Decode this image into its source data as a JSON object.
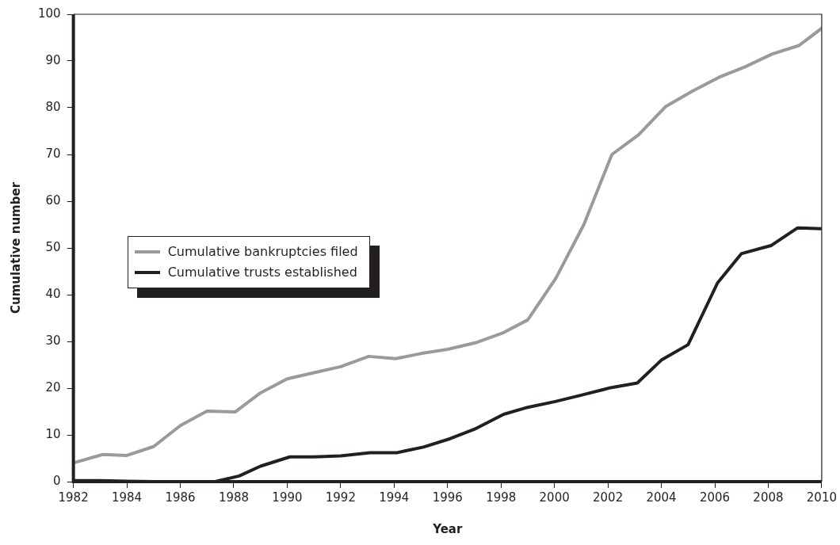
{
  "chart_data": {
    "type": "line",
    "xlabel": "Year",
    "ylabel": "Cumulative number",
    "xlim": [
      1982,
      2010
    ],
    "xticks": [
      1982,
      1984,
      1986,
      1988,
      1990,
      1992,
      1994,
      1996,
      1998,
      2000,
      2002,
      2004,
      2006,
      2008,
      2010
    ],
    "ylim": [
      0,
      100
    ],
    "yticks": [
      0,
      10,
      20,
      30,
      40,
      50,
      60,
      70,
      80,
      90,
      100
    ],
    "grid": false,
    "legend": "left",
    "marker": "none",
    "line_style": "solid",
    "series": [
      {
        "name": "Cumulative bankruptcies filed",
        "color": "#999a9c",
        "x": [
          1982,
          1983.1,
          1984,
          1985,
          1986,
          1987,
          1988.05,
          1989,
          1990,
          1991,
          1992,
          1993.05,
          1994.05,
          1995,
          1996,
          1997.1,
          1998.1,
          1999,
          2000.05,
          2001.1,
          2002.15,
          2003.15,
          2004.15,
          2005.15,
          2006.15,
          2007.15,
          2008.15,
          2009.15,
          2010
        ],
        "values": [
          4,
          5.8,
          5.6,
          7.5,
          12,
          15.1,
          14.9,
          19,
          22,
          23.3,
          24.6,
          26.8,
          26.3,
          27.4,
          28.3,
          29.8,
          31.9,
          34.6,
          43.5,
          55,
          70,
          74.2,
          80.2,
          83.5,
          86.5,
          88.8,
          91.5,
          93.3,
          97
        ]
      },
      {
        "name": "Cumulative trusts established",
        "color": "#231f20",
        "x": [
          1982,
          1983,
          1984,
          1985,
          1986,
          1987.3,
          1988.2,
          1989,
          1990.1,
          1991,
          1992,
          1993.1,
          1994.1,
          1995.1,
          1996.1,
          1997,
          1998.1,
          1999,
          2000,
          2001,
          2002.1,
          2003.1,
          2004,
          2005,
          2006.1,
          2007,
          2008.1,
          2009.1,
          2010
        ],
        "values": [
          0.2,
          0.2,
          0.1,
          0,
          0,
          0,
          1.2,
          3.3,
          5.3,
          5.3,
          5.5,
          6.2,
          6.2,
          7.4,
          9.2,
          11.2,
          14.4,
          15.9,
          17.1,
          18.5,
          20.1,
          21.1,
          26,
          29.3,
          42.5,
          48.8,
          50.5,
          54.3,
          54.1
        ]
      }
    ]
  }
}
